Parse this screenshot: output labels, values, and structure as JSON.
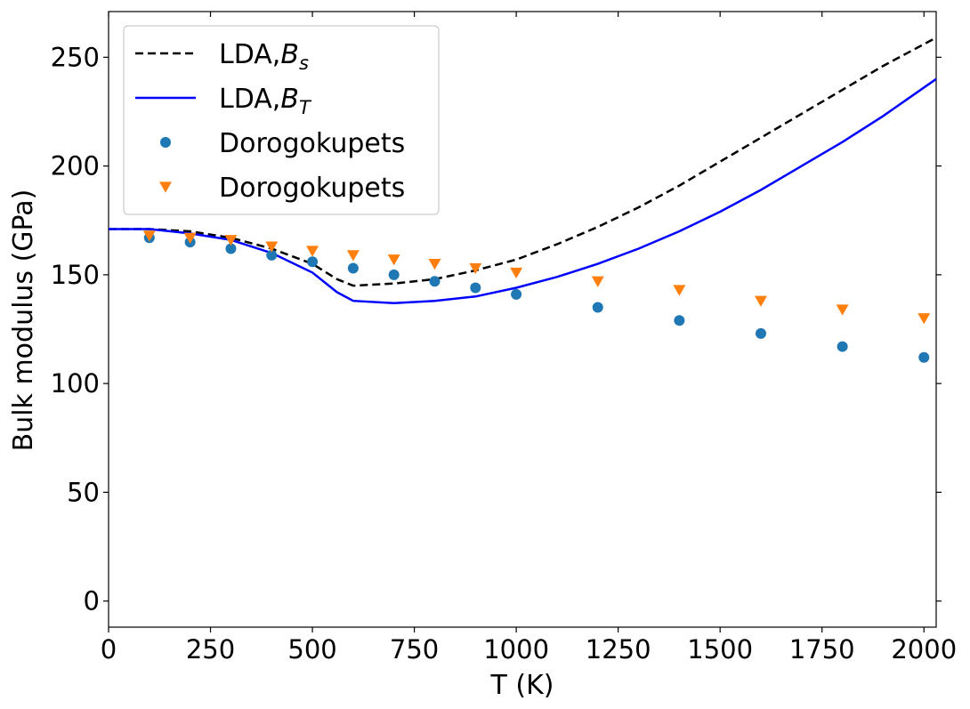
{
  "chart_data": {
    "type": "line",
    "xlabel": "T (K)",
    "ylabel": "Bulk modulus (GPa)",
    "xlim": [
      0,
      2030
    ],
    "ylim": [
      -12,
      271
    ],
    "xticks": [
      0,
      250,
      500,
      750,
      1000,
      1250,
      1500,
      1750,
      2000
    ],
    "yticks": [
      0,
      50,
      100,
      150,
      200,
      250
    ],
    "legend_position": "top-left",
    "grid": false,
    "series": [
      {
        "name": "LDA,B_s",
        "label_main": "LDA,",
        "label_var": "B",
        "label_sub": "s",
        "kind": "line",
        "style": "dashed",
        "color": "#000000",
        "x": [
          0,
          100,
          200,
          300,
          400,
          500,
          560,
          600,
          700,
          800,
          900,
          1000,
          1100,
          1200,
          1300,
          1400,
          1500,
          1600,
          1700,
          1800,
          1900,
          2030
        ],
        "y": [
          171,
          171,
          170,
          167,
          162,
          155,
          148,
          145,
          146,
          148,
          152,
          157,
          164,
          172,
          181,
          191,
          202,
          213,
          224,
          235,
          246,
          259
        ]
      },
      {
        "name": "LDA,B_T",
        "label_main": "LDA,",
        "label_var": "B",
        "label_sub": "T",
        "kind": "line",
        "style": "solid",
        "color": "#0000ff",
        "x": [
          0,
          100,
          200,
          300,
          400,
          500,
          560,
          600,
          700,
          800,
          900,
          1000,
          1100,
          1200,
          1300,
          1400,
          1500,
          1600,
          1700,
          1800,
          1900,
          2030
        ],
        "y": [
          171,
          171,
          169,
          166,
          160,
          151,
          142,
          138,
          137,
          138,
          140,
          144,
          149,
          155,
          162,
          170,
          179,
          189,
          200,
          211,
          223,
          240
        ]
      },
      {
        "name": "Dorogokupets",
        "kind": "scatter",
        "marker": "circle",
        "color": "#1f77b4",
        "x": [
          100,
          200,
          300,
          400,
          500,
          600,
          700,
          800,
          900,
          1000,
          1200,
          1400,
          1600,
          1800,
          2000
        ],
        "y": [
          167,
          165,
          162,
          159,
          156,
          153,
          150,
          147,
          144,
          141,
          135,
          129,
          123,
          117,
          112
        ]
      },
      {
        "name": "Dorogokupets",
        "kind": "scatter",
        "marker": "triangle-down",
        "color": "#ff7f0e",
        "x": [
          100,
          200,
          300,
          400,
          500,
          600,
          700,
          800,
          900,
          1000,
          1200,
          1400,
          1600,
          1800,
          2000
        ],
        "y": [
          168,
          167,
          166,
          163,
          161,
          159,
          157,
          155,
          153,
          151,
          147,
          143,
          138,
          134,
          130
        ]
      }
    ]
  }
}
